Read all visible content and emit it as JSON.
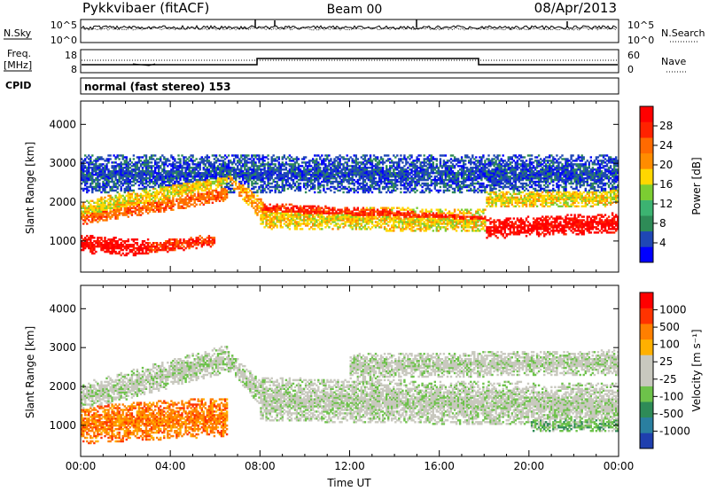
{
  "header": {
    "station": "Pykkvibaer (fitACF)",
    "beam": "Beam 00",
    "date": "08/Apr/2013"
  },
  "strips": {
    "nsky_label": "N.Sky",
    "nsky_ticks": [
      "10^5",
      "10^0"
    ],
    "nsearch_label": "N.Search",
    "nsearch_ticks": [
      "10^5",
      "10^0"
    ],
    "freq_label_1": "Freq.",
    "freq_label_2": "[MHz]",
    "freq_ticks": [
      "18",
      "8"
    ],
    "nave_label": "Nave",
    "nave_ticks": [
      "60",
      "0"
    ],
    "cpid_label": "CPID",
    "cpid_text": "normal (fast stereo) 153"
  },
  "colors": {
    "power_scale": [
      "#0000ff",
      "#1f47b5",
      "#2e8b57",
      "#3cb371",
      "#7ccd32",
      "#ffd700",
      "#ff8c00",
      "#ff6a00",
      "#ff2200",
      "#ff0000"
    ],
    "velocity_scale": [
      "#1f3fae",
      "#2a7fa0",
      "#2e8b57",
      "#6dc24a",
      "#c8c8be",
      "#c8c8be",
      "#ffb000",
      "#ff7f00",
      "#ff3300",
      "#ff0000"
    ]
  },
  "chart_data": [
    {
      "type": "heatmap",
      "name": "power",
      "ylabel": "Slant Range [km]",
      "yticks": [
        "1000",
        "2000",
        "3000",
        "4000"
      ],
      "ylim": [
        200,
        4600
      ],
      "xlim": [
        0,
        24
      ],
      "colorbar_label": "Power [dB]",
      "colorbar_ticks": [
        "4",
        "8",
        "12",
        "16",
        "20",
        "24",
        "28"
      ],
      "bands": [
        {
          "t0": 0.0,
          "t1": 3.0,
          "r0": 900,
          "r1": 800,
          "w": 230,
          "level": 9
        },
        {
          "t0": 3.0,
          "t1": 6.0,
          "r0": 800,
          "r1": 1000,
          "w": 160,
          "level": 8
        },
        {
          "t0": 0.0,
          "t1": 6.5,
          "r0": 1700,
          "r1": 2600,
          "w": 280,
          "level": 5
        },
        {
          "t0": 0.0,
          "t1": 6.5,
          "r0": 1600,
          "r1": 2200,
          "w": 200,
          "level": 7
        },
        {
          "t0": 6.5,
          "t1": 8.5,
          "r0": 2700,
          "r1": 1500,
          "w": 260,
          "level": 6
        },
        {
          "t0": 8.0,
          "t1": 18.0,
          "r0": 1600,
          "r1": 1500,
          "w": 300,
          "level": 5
        },
        {
          "t0": 8.0,
          "t1": 18.0,
          "r0": 1800,
          "r1": 1550,
          "w": 160,
          "level": 8
        },
        {
          "t0": 18.0,
          "t1": 24.0,
          "r0": 1300,
          "r1": 1450,
          "w": 260,
          "level": 9
        },
        {
          "t0": 18.0,
          "t1": 24.0,
          "r0": 2050,
          "r1": 2100,
          "w": 220,
          "level": 5
        },
        {
          "t0": 0.0,
          "t1": 24.0,
          "r0": 2700,
          "r1": 2700,
          "w": 500,
          "level": 1
        }
      ]
    },
    {
      "type": "heatmap",
      "name": "velocity",
      "ylabel": "Slant Range [km]",
      "yticks": [
        "1000",
        "2000",
        "3000",
        "4000"
      ],
      "ylim": [
        200,
        4600
      ],
      "xlim": [
        0,
        24
      ],
      "xticks": [
        "00:00",
        "04:00",
        "08:00",
        "12:00",
        "16:00",
        "20:00",
        "00:00"
      ],
      "xlabel": "Time UT",
      "colorbar_label": "Velocity [m s⁻¹]",
      "colorbar_ticks": [
        "1000",
        "500",
        "100",
        "25",
        "-25",
        "-100",
        "-500",
        "-1000"
      ],
      "bands": [
        {
          "t0": 0.0,
          "t1": 6.5,
          "r0": 1000,
          "r1": 1200,
          "w": 500,
          "level": 7
        },
        {
          "t0": 0.0,
          "t1": 6.5,
          "r0": 1700,
          "r1": 2700,
          "w": 360,
          "level": 4
        },
        {
          "t0": 6.5,
          "t1": 8.5,
          "r0": 2700,
          "r1": 1500,
          "w": 300,
          "level": 4
        },
        {
          "t0": 8.0,
          "t1": 24.0,
          "r0": 1650,
          "r1": 1500,
          "w": 560,
          "level": 4
        },
        {
          "t0": 12.0,
          "t1": 24.0,
          "r0": 2500,
          "r1": 2600,
          "w": 320,
          "level": 4
        },
        {
          "t0": 20.0,
          "t1": 24.0,
          "r0": 1000,
          "r1": 1000,
          "w": 180,
          "level": 3
        }
      ]
    }
  ]
}
